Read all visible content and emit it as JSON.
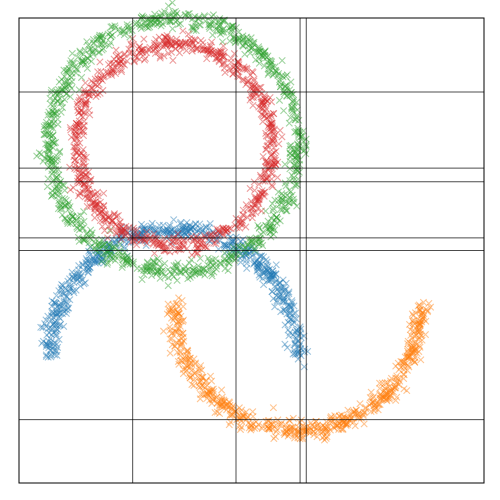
{
  "chart_data": {
    "type": "scatter",
    "marker": "x",
    "title": "",
    "xlabel": "",
    "ylabel": "",
    "xlim": [
      -1.5,
      3.0
    ],
    "ylim": [
      -1.2,
      3.2
    ],
    "grid": false,
    "ticks_visible": false,
    "legend": "none",
    "reference_lines": {
      "vertical_x": [
        -0.4,
        0.6,
        1.22,
        1.28
      ],
      "horizontal_y": [
        -0.6,
        1.0,
        1.12,
        1.65,
        1.78,
        2.5
      ]
    },
    "series": [
      {
        "shape": "arc",
        "color": "#1f77b4",
        "alpha": 0.45,
        "center": [
          0.0,
          0.0
        ],
        "radius": 1.2,
        "angle_range_deg": [
          0,
          180
        ],
        "noise": 0.09,
        "count": 600
      },
      {
        "shape": "arc",
        "color": "#ff7f0e",
        "alpha": 0.45,
        "center": [
          1.2,
          0.5
        ],
        "radius": 1.2,
        "angle_range_deg": [
          180,
          360
        ],
        "noise": 0.09,
        "count": 600
      },
      {
        "shape": "circle",
        "color": "#2ca02c",
        "alpha": 0.45,
        "center": [
          0.0,
          2.0
        ],
        "radius": 1.2,
        "noise": 0.09,
        "count": 900
      },
      {
        "shape": "circle",
        "color": "#d62728",
        "alpha": 0.45,
        "center": [
          0.0,
          2.0
        ],
        "radius": 0.95,
        "noise": 0.09,
        "count": 800
      }
    ]
  }
}
